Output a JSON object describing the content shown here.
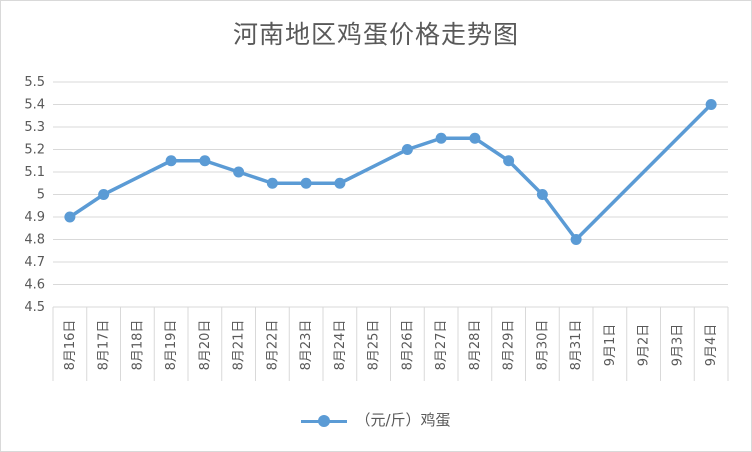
{
  "chart_data": {
    "type": "line",
    "title": "河南地区鸡蛋价格走势图",
    "categories": [
      "8月16日",
      "8月17日",
      "8月18日",
      "8月19日",
      "8月20日",
      "8月21日",
      "8月22日",
      "8月23日",
      "8月24日",
      "8月25日",
      "8月26日",
      "8月27日",
      "8月28日",
      "8月29日",
      "8月30日",
      "8月31日",
      "9月1日",
      "9月2日",
      "9月3日",
      "9月4日"
    ],
    "series": [
      {
        "name": "（元/斤）鸡蛋",
        "values": [
          4.9,
          5.0,
          null,
          5.15,
          5.15,
          5.1,
          5.05,
          5.05,
          5.05,
          null,
          5.2,
          5.25,
          5.25,
          5.15,
          5.0,
          4.8,
          null,
          null,
          null,
          5.4
        ],
        "color": "#5b9bd5"
      }
    ],
    "ylim": [
      4.5,
      5.5
    ],
    "yticks": [
      "4.5",
      "4.6",
      "4.7",
      "4.8",
      "4.9",
      "5",
      "5.1",
      "5.2",
      "5.3",
      "5.4",
      "5.5"
    ],
    "xlabel": "",
    "ylabel": "",
    "grid": true,
    "legend": "bottom",
    "gridColor": "#d9d9d9"
  }
}
